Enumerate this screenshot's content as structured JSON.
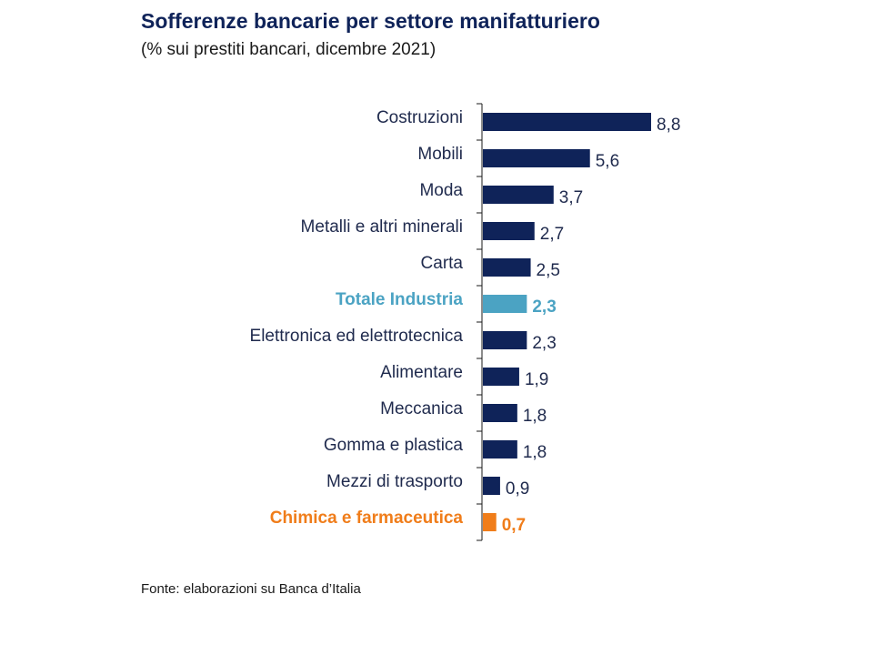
{
  "title": "Sofferenze bancarie per settore manifatturiero",
  "subtitle": "(% sui prestiti bancari, dicembre 2021)",
  "source": "Fonte: elaborazioni su Banca d’Italia",
  "colors": {
    "bar": "#0f2359",
    "total": "#4ba3c3",
    "highlight": "#f07d1a",
    "axis": "#1a1a1a"
  },
  "chart_data": {
    "type": "bar",
    "orientation": "horizontal",
    "title": "Sofferenze bancarie per settore manifatturiero",
    "subtitle": "(% sui prestiti bancari, dicembre 2021)",
    "categories": [
      "Costruzioni",
      "Mobili",
      "Moda",
      "Metalli e altri minerali",
      "Carta",
      "Totale Industria",
      "Elettronica ed elettrotecnica",
      "Alimentare",
      "Meccanica",
      "Gomma e plastica",
      "Mezzi di trasporto",
      "Chimica e farmaceutica"
    ],
    "values": [
      8.8,
      5.6,
      3.7,
      2.7,
      2.5,
      2.3,
      2.3,
      1.9,
      1.8,
      1.8,
      0.9,
      0.7
    ],
    "value_labels": [
      "8,8",
      "5,6",
      "3,7",
      "2,7",
      "2,5",
      "2,3",
      "2,3",
      "1,9",
      "1,8",
      "1,8",
      "0,9",
      "0,7"
    ],
    "highlight": {
      "Totale Industria": "total",
      "Chimica e farmaceutica": "highlight"
    },
    "xlim": [
      0,
      8.8
    ],
    "grid": false,
    "legend": "none"
  }
}
